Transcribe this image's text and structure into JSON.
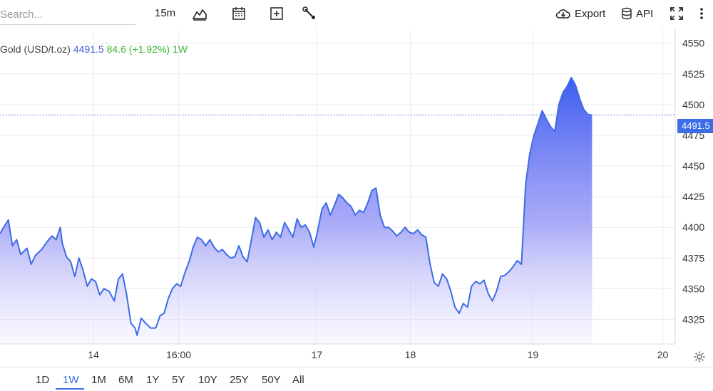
{
  "toolbar": {
    "search_placeholder": "Search...",
    "interval": "15m",
    "export_label": "Export",
    "api_label": "API",
    "icons": [
      "chart-type-icon",
      "calendar-icon",
      "add-indicator-icon",
      "wrench-icon",
      "cloud-download-icon",
      "database-icon",
      "fullscreen-icon",
      "more-vertical-icon"
    ]
  },
  "legend": {
    "instrument": "Gold (USD/t.oz)",
    "price": "4491.5",
    "change": "84.6",
    "percent": "(+1.92%)",
    "range": "1W"
  },
  "last_price_label": "4491.5",
  "ranges": [
    "1D",
    "1W",
    "1M",
    "6M",
    "1Y",
    "5Y",
    "10Y",
    "25Y",
    "50Y",
    "All"
  ],
  "active_range": "1W",
  "colors": {
    "line": "#3d6ce6",
    "fill_top": "#5b6cf0",
    "up": "#3ab83a",
    "badge": "#3d6ce6"
  },
  "chart_data": {
    "type": "area",
    "title": "Gold (USD/t.oz)",
    "xlabel": "",
    "ylabel": "",
    "y_ticks": [
      4325,
      4350,
      4375,
      4400,
      4425,
      4450,
      4475,
      4500,
      4525,
      4550
    ],
    "ylim": [
      4305,
      4562
    ],
    "x_tick_labels": [
      "14",
      "16:00",
      "17",
      "18",
      "19",
      "20"
    ],
    "x_tick_positions": [
      1.4,
      2.22,
      3.55,
      4.45,
      5.63,
      6.88
    ],
    "xlim": [
      0.5,
      7.0
    ],
    "last_price": 4491.5,
    "grid": true,
    "points": [
      [
        0.5,
        4395
      ],
      [
        0.55,
        4402
      ],
      [
        0.58,
        4406
      ],
      [
        0.62,
        4385
      ],
      [
        0.66,
        4390
      ],
      [
        0.7,
        4378
      ],
      [
        0.76,
        4383
      ],
      [
        0.8,
        4370
      ],
      [
        0.84,
        4377
      ],
      [
        0.9,
        4382
      ],
      [
        0.95,
        4388
      ],
      [
        1.0,
        4393
      ],
      [
        1.04,
        4390
      ],
      [
        1.08,
        4400
      ],
      [
        1.1,
        4387
      ],
      [
        1.14,
        4376
      ],
      [
        1.18,
        4372
      ],
      [
        1.22,
        4360
      ],
      [
        1.26,
        4375
      ],
      [
        1.3,
        4365
      ],
      [
        1.34,
        4352
      ],
      [
        1.38,
        4358
      ],
      [
        1.42,
        4356
      ],
      [
        1.46,
        4345
      ],
      [
        1.5,
        4350
      ],
      [
        1.55,
        4348
      ],
      [
        1.6,
        4340
      ],
      [
        1.64,
        4358
      ],
      [
        1.68,
        4362
      ],
      [
        1.72,
        4345
      ],
      [
        1.76,
        4322
      ],
      [
        1.8,
        4318
      ],
      [
        1.82,
        4312
      ],
      [
        1.86,
        4326
      ],
      [
        1.9,
        4322
      ],
      [
        1.95,
        4318
      ],
      [
        2.0,
        4318
      ],
      [
        2.04,
        4328
      ],
      [
        2.08,
        4330
      ],
      [
        2.12,
        4342
      ],
      [
        2.16,
        4350
      ],
      [
        2.2,
        4354
      ],
      [
        2.24,
        4352
      ],
      [
        2.28,
        4363
      ],
      [
        2.32,
        4372
      ],
      [
        2.36,
        4384
      ],
      [
        2.4,
        4392
      ],
      [
        2.44,
        4390
      ],
      [
        2.48,
        4385
      ],
      [
        2.52,
        4390
      ],
      [
        2.56,
        4384
      ],
      [
        2.6,
        4380
      ],
      [
        2.64,
        4382
      ],
      [
        2.68,
        4378
      ],
      [
        2.72,
        4375
      ],
      [
        2.76,
        4376
      ],
      [
        2.8,
        4385
      ],
      [
        2.84,
        4376
      ],
      [
        2.88,
        4372
      ],
      [
        2.92,
        4390
      ],
      [
        2.96,
        4408
      ],
      [
        3.0,
        4404
      ],
      [
        3.04,
        4392
      ],
      [
        3.08,
        4398
      ],
      [
        3.12,
        4390
      ],
      [
        3.16,
        4396
      ],
      [
        3.2,
        4392
      ],
      [
        3.24,
        4404
      ],
      [
        3.28,
        4398
      ],
      [
        3.32,
        4392
      ],
      [
        3.36,
        4407
      ],
      [
        3.4,
        4400
      ],
      [
        3.44,
        4402
      ],
      [
        3.48,
        4396
      ],
      [
        3.52,
        4384
      ],
      [
        3.56,
        4398
      ],
      [
        3.6,
        4415
      ],
      [
        3.64,
        4420
      ],
      [
        3.68,
        4410
      ],
      [
        3.72,
        4418
      ],
      [
        3.76,
        4427
      ],
      [
        3.8,
        4424
      ],
      [
        3.84,
        4420
      ],
      [
        3.88,
        4417
      ],
      [
        3.92,
        4410
      ],
      [
        3.96,
        4414
      ],
      [
        4.0,
        4412
      ],
      [
        4.04,
        4420
      ],
      [
        4.08,
        4430
      ],
      [
        4.12,
        4432
      ],
      [
        4.16,
        4410
      ],
      [
        4.2,
        4400
      ],
      [
        4.24,
        4400
      ],
      [
        4.28,
        4397
      ],
      [
        4.32,
        4393
      ],
      [
        4.36,
        4396
      ],
      [
        4.4,
        4400
      ],
      [
        4.44,
        4396
      ],
      [
        4.48,
        4395
      ],
      [
        4.52,
        4398
      ],
      [
        4.56,
        4394
      ],
      [
        4.6,
        4392
      ],
      [
        4.64,
        4370
      ],
      [
        4.68,
        4355
      ],
      [
        4.72,
        4352
      ],
      [
        4.76,
        4362
      ],
      [
        4.8,
        4358
      ],
      [
        4.84,
        4348
      ],
      [
        4.88,
        4335
      ],
      [
        4.92,
        4330
      ],
      [
        4.96,
        4338
      ],
      [
        5.0,
        4335
      ],
      [
        5.04,
        4352
      ],
      [
        5.08,
        4356
      ],
      [
        5.12,
        4354
      ],
      [
        5.16,
        4357
      ],
      [
        5.2,
        4346
      ],
      [
        5.24,
        4340
      ],
      [
        5.28,
        4348
      ],
      [
        5.32,
        4360
      ],
      [
        5.36,
        4361
      ],
      [
        5.4,
        4364
      ],
      [
        5.44,
        4368
      ],
      [
        5.48,
        4373
      ],
      [
        5.52,
        4370
      ],
      [
        5.56,
        4435
      ],
      [
        5.6,
        4460
      ],
      [
        5.64,
        4475
      ],
      [
        5.68,
        4485
      ],
      [
        5.72,
        4495
      ],
      [
        5.76,
        4488
      ],
      [
        5.8,
        4482
      ],
      [
        5.84,
        4478
      ],
      [
        5.88,
        4500
      ],
      [
        5.92,
        4510
      ],
      [
        5.96,
        4515
      ],
      [
        6.0,
        4522
      ],
      [
        6.04,
        4516
      ],
      [
        6.08,
        4505
      ],
      [
        6.12,
        4496
      ],
      [
        6.16,
        4492
      ],
      [
        6.2,
        4491.5
      ]
    ]
  }
}
